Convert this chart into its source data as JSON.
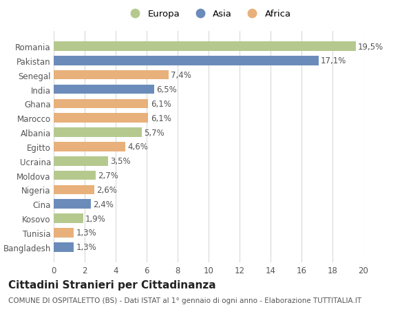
{
  "categories": [
    "Romania",
    "Pakistan",
    "Senegal",
    "India",
    "Ghana",
    "Marocco",
    "Albania",
    "Egitto",
    "Ucraina",
    "Moldova",
    "Nigeria",
    "Cina",
    "Kosovo",
    "Tunisia",
    "Bangladesh"
  ],
  "values": [
    19.5,
    17.1,
    7.4,
    6.5,
    6.1,
    6.1,
    5.7,
    4.6,
    3.5,
    2.7,
    2.6,
    2.4,
    1.9,
    1.3,
    1.3
  ],
  "labels": [
    "19,5%",
    "17,1%",
    "7,4%",
    "6,5%",
    "6,1%",
    "6,1%",
    "5,7%",
    "4,6%",
    "3,5%",
    "2,7%",
    "2,6%",
    "2,4%",
    "1,9%",
    "1,3%",
    "1,3%"
  ],
  "colors": [
    "#b5c98e",
    "#6b8cba",
    "#e8b07a",
    "#6b8cba",
    "#e8b07a",
    "#e8b07a",
    "#b5c98e",
    "#e8b07a",
    "#b5c98e",
    "#b5c98e",
    "#e8b07a",
    "#6b8cba",
    "#b5c98e",
    "#e8b07a",
    "#6b8cba"
  ],
  "legend": [
    {
      "label": "Europa",
      "color": "#b5c98e"
    },
    {
      "label": "Asia",
      "color": "#6b8cba"
    },
    {
      "label": "Africa",
      "color": "#e8b07a"
    }
  ],
  "xlim": [
    0,
    20
  ],
  "xticks": [
    0,
    2,
    4,
    6,
    8,
    10,
    12,
    14,
    16,
    18,
    20
  ],
  "title": "Cittadini Stranieri per Cittadinanza",
  "subtitle": "COMUNE DI OSPITALETTO (BS) - Dati ISTAT al 1° gennaio di ogni anno - Elaborazione TUTTITALIA.IT",
  "bg_color": "#ffffff",
  "grid_color": "#d8d8d8",
  "bar_height": 0.65,
  "label_fontsize": 8.5,
  "tick_fontsize": 8.5,
  "title_fontsize": 11,
  "subtitle_fontsize": 7.5
}
